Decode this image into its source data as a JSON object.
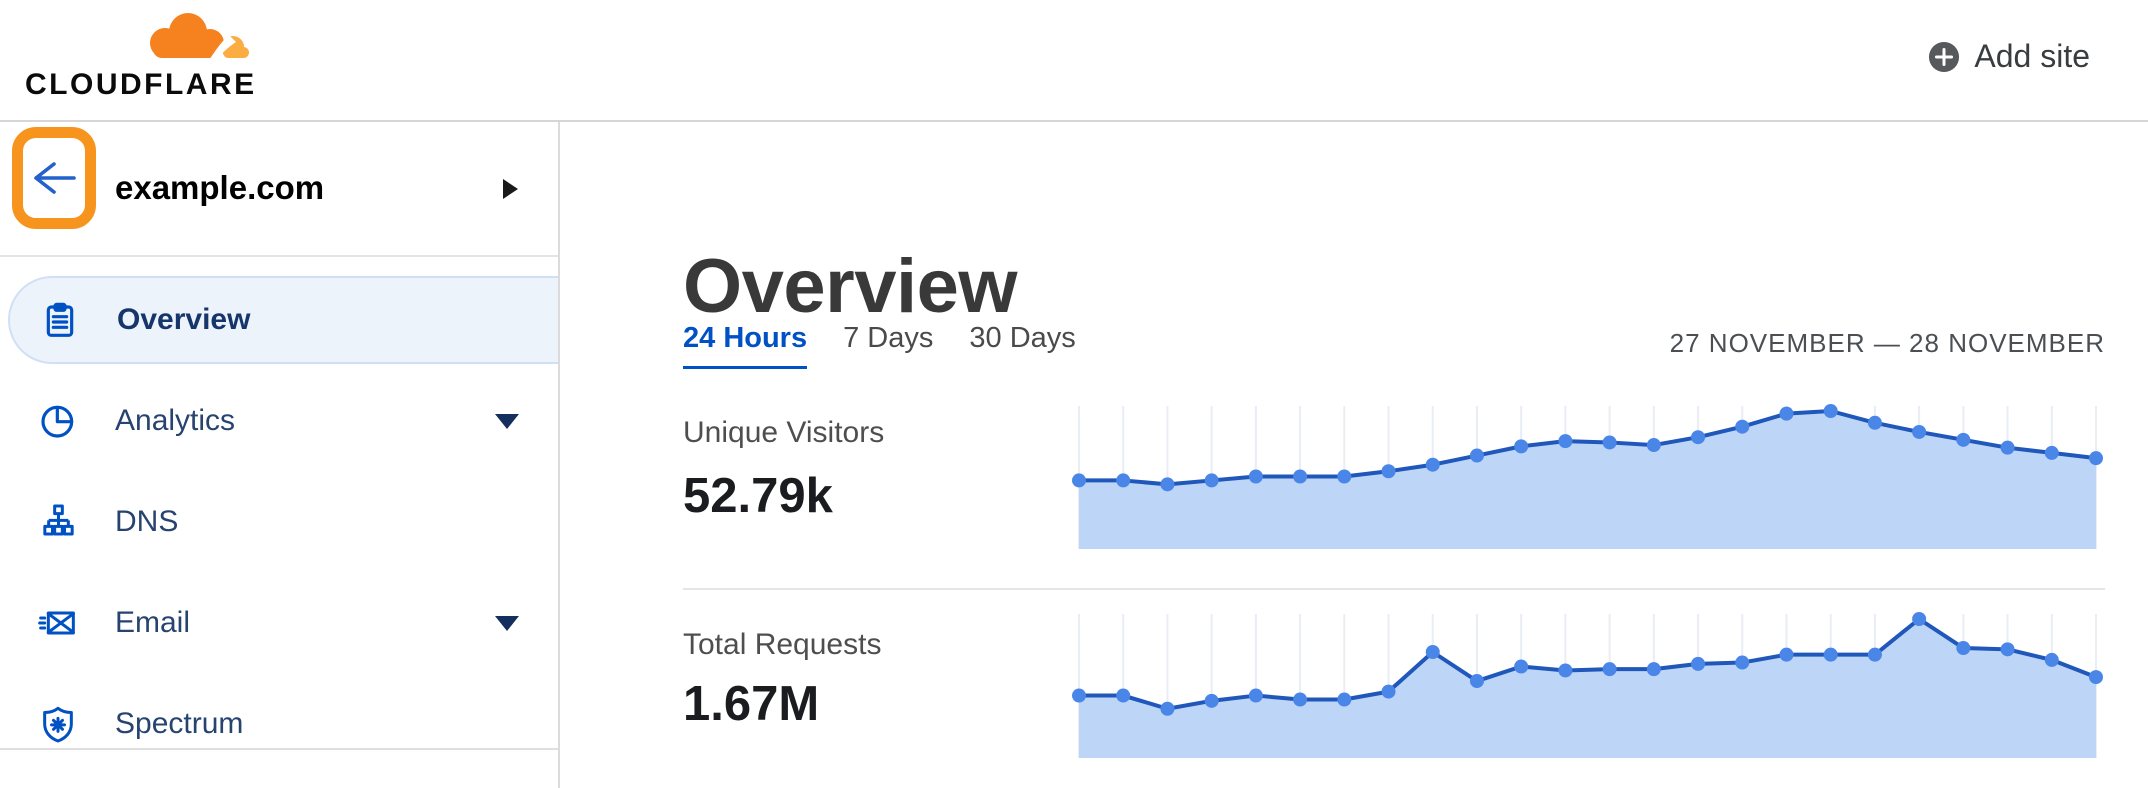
{
  "header": {
    "logo_text": "CLOUDFLARE",
    "add_site_label": "Add site"
  },
  "sidebar": {
    "site_name": "example.com",
    "items": [
      {
        "label": "Overview",
        "icon": "clipboard-icon",
        "selected": true,
        "caret": false
      },
      {
        "label": "Analytics",
        "icon": "pie-chart-icon",
        "selected": false,
        "caret": true
      },
      {
        "label": "DNS",
        "icon": "dns-tree-icon",
        "selected": false,
        "caret": false
      },
      {
        "label": "Email",
        "icon": "envelope-icon",
        "selected": false,
        "caret": true
      },
      {
        "label": "Spectrum",
        "icon": "shield-icon",
        "selected": false,
        "caret": false
      }
    ]
  },
  "main": {
    "title": "Overview",
    "tabs": [
      {
        "label": "24 Hours",
        "active": true
      },
      {
        "label": "7 Days",
        "active": false
      },
      {
        "label": "30 Days",
        "active": false
      }
    ],
    "date_range": "27 NOVEMBER — 28 NOVEMBER",
    "metrics": [
      {
        "label": "Unique Visitors",
        "value": "52.79k"
      },
      {
        "label": "Total Requests",
        "value": "1.67M"
      }
    ]
  },
  "colors": {
    "brand_orange_dark": "#f6821f",
    "brand_orange_light": "#fbad41",
    "annotation_orange": "#f7941d",
    "link_blue": "#0051c3",
    "nav_icon_blue": "#0051c3",
    "nav_label_navy": "#27436f",
    "selected_pill_bg": "#edf3fb"
  },
  "chart_data": [
    {
      "type": "area",
      "title": "Unique Visitors",
      "total_shown": "52.79k",
      "period": "24 Hours (27 November — 28 November)",
      "value_scale": "relative 0-100, no y-axis labels shown; estimated from line heights",
      "values": [
        47,
        47,
        44,
        47,
        50,
        50,
        50,
        54,
        59,
        66,
        73,
        77,
        76,
        74,
        80,
        88,
        98,
        100,
        91,
        84,
        78,
        72,
        68,
        64
      ],
      "grid": "vertical line per point",
      "line_color": "#2057ba",
      "dot_color": "#4a85e8",
      "fill_color": "#bdd6f7",
      "grid_color": "#e9edf4"
    },
    {
      "type": "area",
      "title": "Total Requests",
      "total_shown": "1.67M",
      "period": "24 Hours (27 November — 28 November)",
      "value_scale": "relative 0-100, no y-axis labels shown; estimated from line heights",
      "values": [
        42,
        42,
        32,
        38,
        42,
        39,
        39,
        45,
        75,
        53,
        64,
        61,
        62,
        62,
        66,
        67,
        73,
        73,
        73,
        100,
        78,
        77,
        69,
        56
      ],
      "grid": "vertical line per point",
      "line_color": "#2057ba",
      "dot_color": "#4a85e8",
      "fill_color": "#bdd6f7",
      "grid_color": "#e9edf4"
    }
  ]
}
